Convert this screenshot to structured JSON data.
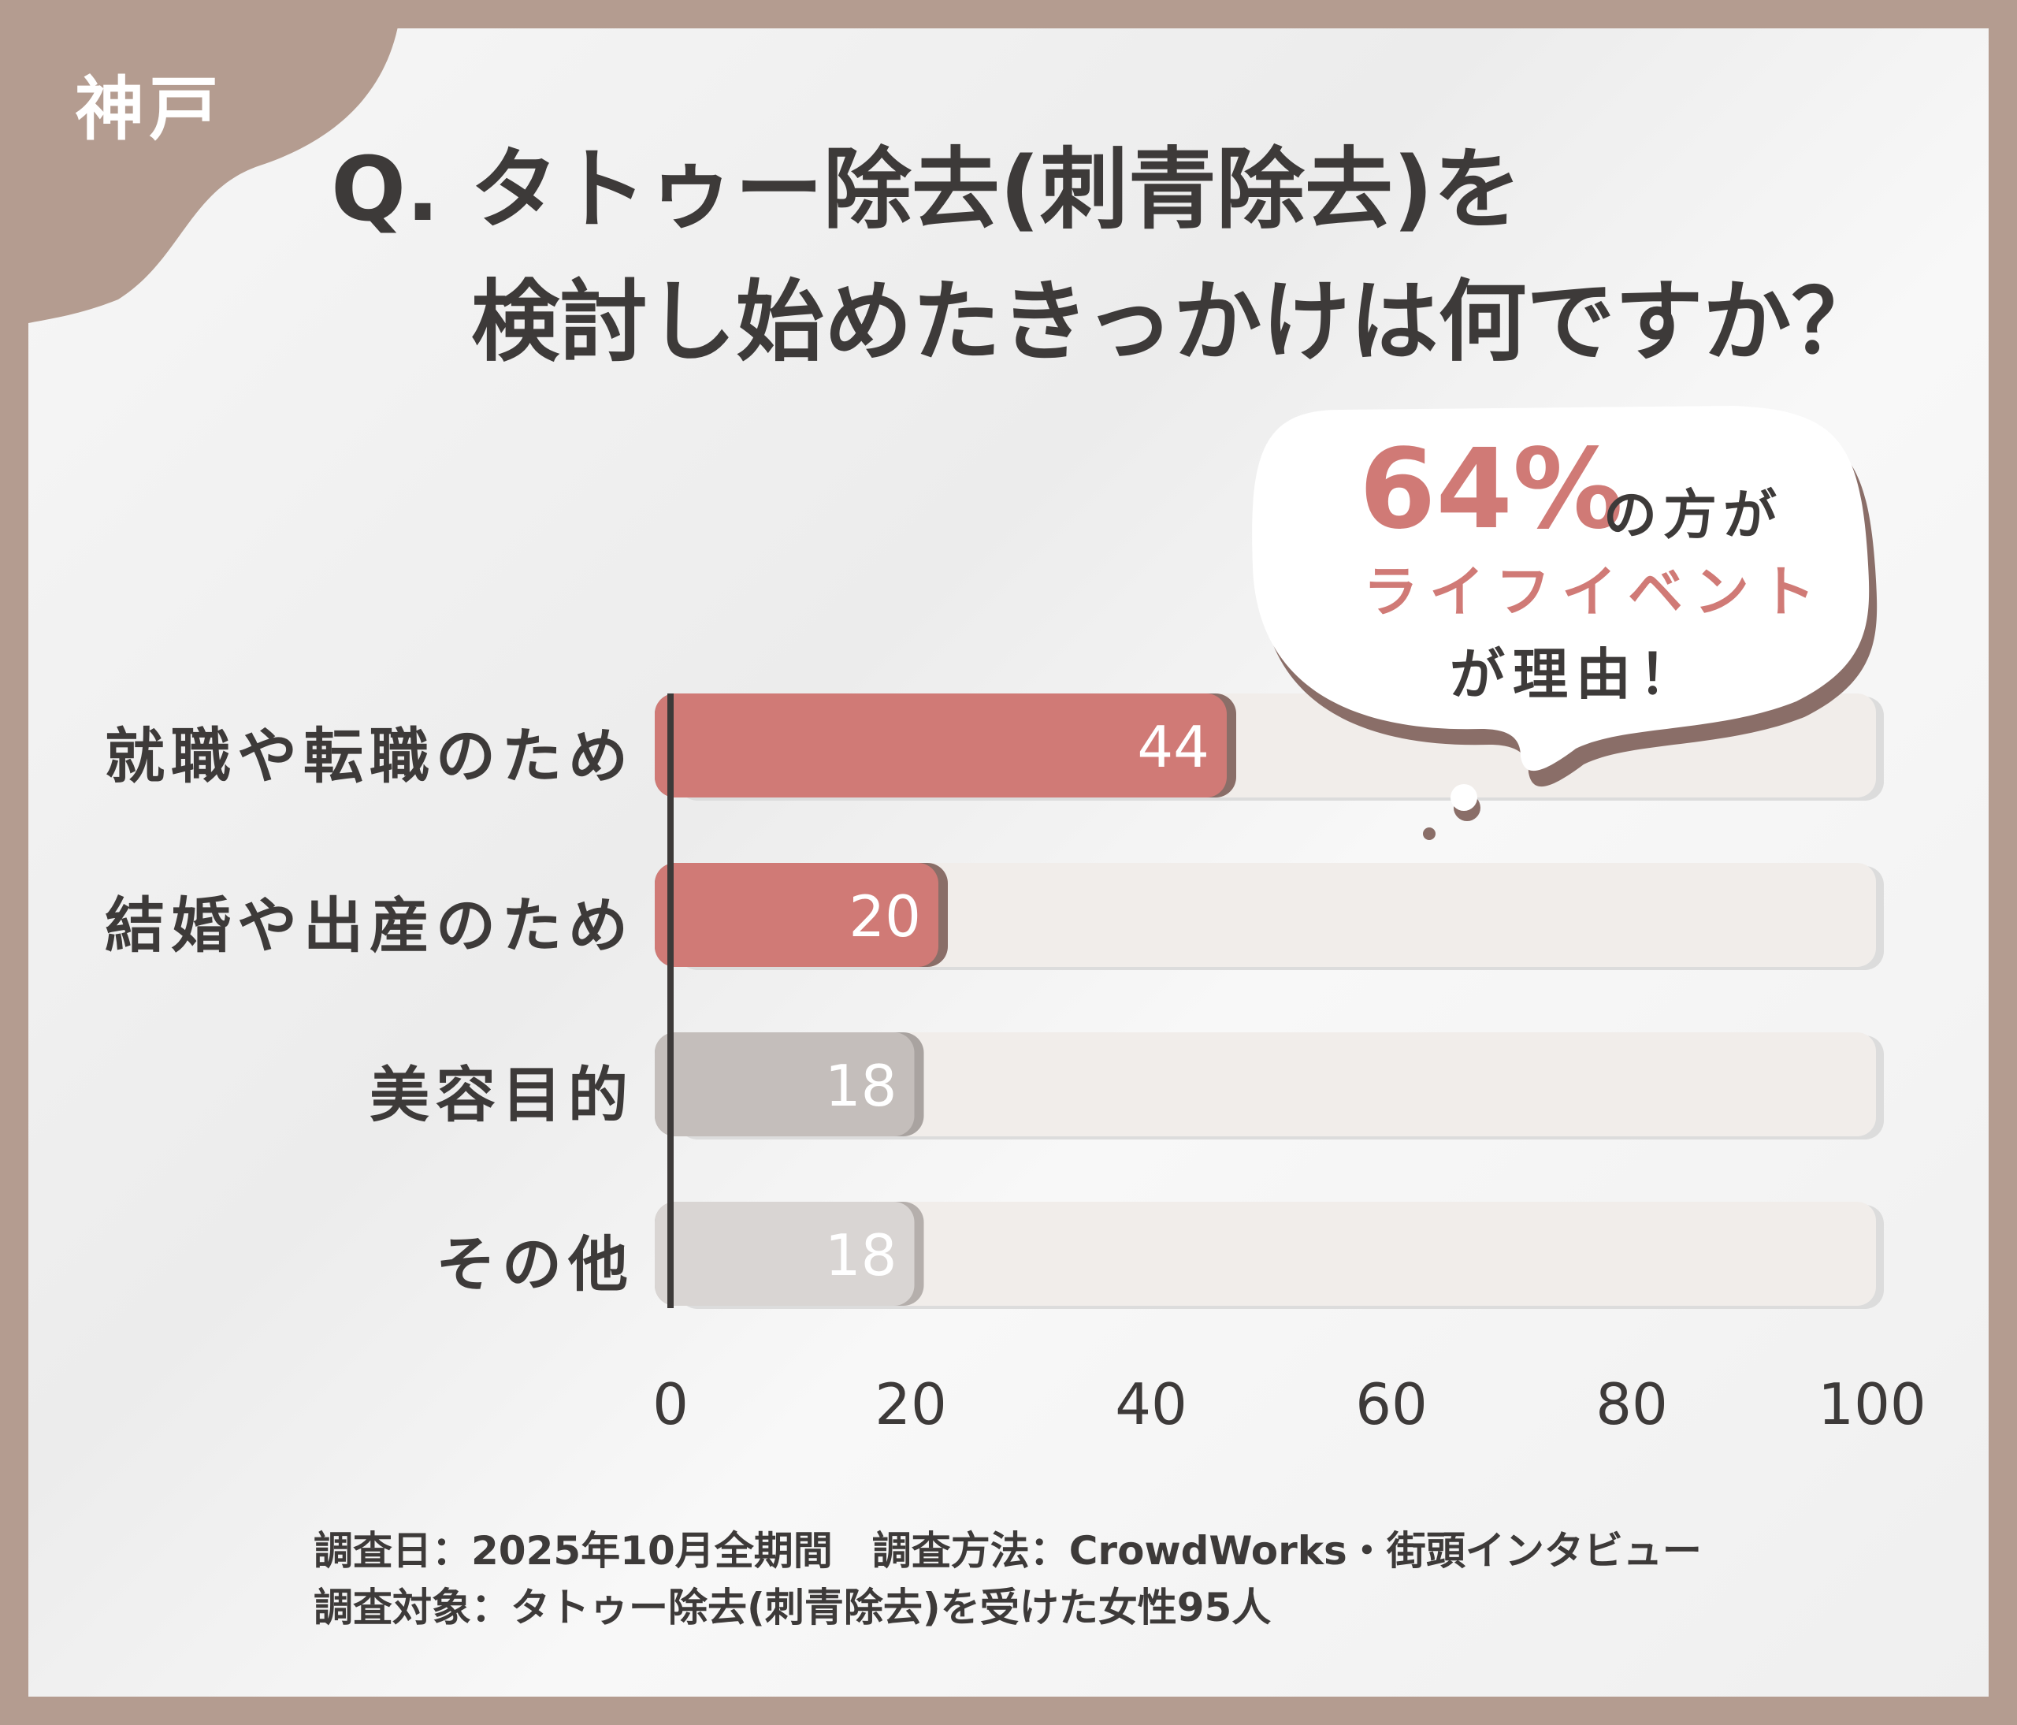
{
  "tag": "神戸",
  "title": {
    "line1": "Q. タトゥー除去(刺青除去)を",
    "line2": "検討し始めたきっかけは何ですか？"
  },
  "callout": {
    "percent": "64%",
    "line1_rest": "の方が",
    "line2": "ライフイベント",
    "line3": "が理由！"
  },
  "colors": {
    "accent": "#d07a76",
    "accent_shadow": "#8a6e68",
    "gray": "#c4bebb",
    "gray_light": "#d9d5d3",
    "track": "#f1edea",
    "text": "#3d3a39",
    "frame": "#b49c90"
  },
  "chart_data": {
    "type": "bar",
    "orientation": "horizontal",
    "categories": [
      "就職や転職のため",
      "結婚や出産のため",
      "美容目的",
      "その他"
    ],
    "values": [
      44,
      20,
      18,
      18
    ],
    "value_labels": [
      "44",
      "20",
      "18",
      "18"
    ],
    "xlim": [
      0,
      100
    ],
    "xticks": [
      "0",
      "20",
      "40",
      "60",
      "80",
      "100"
    ],
    "grid": false
  },
  "footer": {
    "line1": "調査日：2025年10月全期間　調査方法：CrowdWorks・街頭インタビュー",
    "line2": "調査対象：タトゥー除去(刺青除去)を受けた女性95人"
  }
}
